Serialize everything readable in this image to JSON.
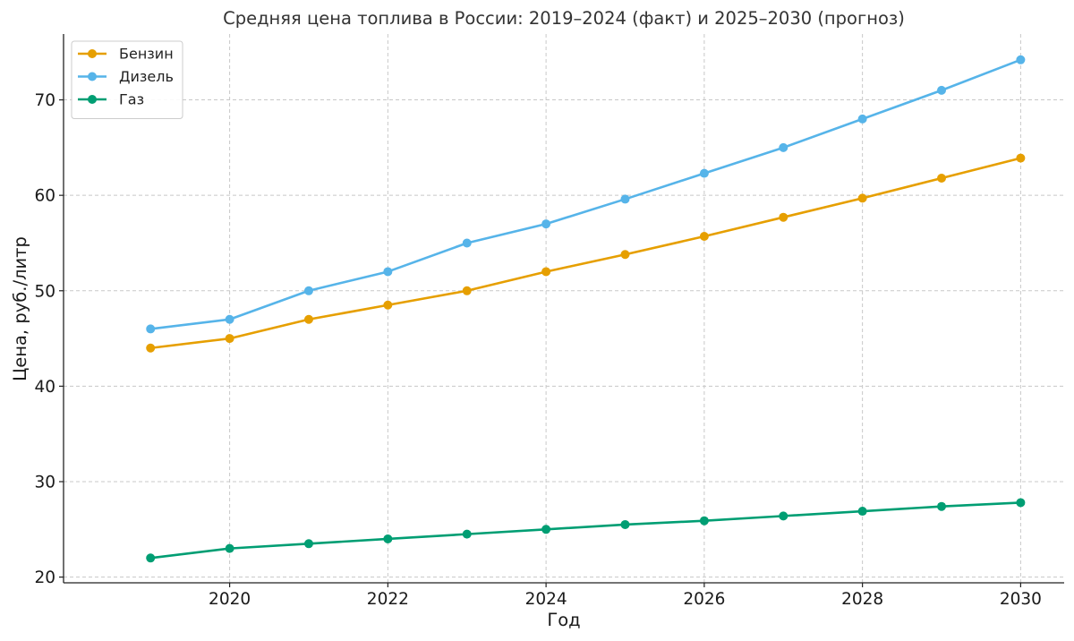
{
  "chart_data": {
    "type": "line",
    "title": "Средняя цена топлива в России: 2019–2024 (факт) и 2025–2030 (прогноз)",
    "xlabel": "Год",
    "ylabel": "Цена, руб./литр",
    "x": [
      2019,
      2020,
      2021,
      2022,
      2023,
      2024,
      2025,
      2026,
      2027,
      2028,
      2029,
      2030
    ],
    "x_ticks": [
      2020,
      2022,
      2024,
      2026,
      2028,
      2030
    ],
    "y_ticks": [
      20,
      30,
      40,
      50,
      60,
      70
    ],
    "xlim": [
      2017.9,
      2030.55
    ],
    "ylim": [
      19.4,
      76.9
    ],
    "grid": true,
    "legend_position": "top-left",
    "series": [
      {
        "name": "Бензин",
        "color": "#e69f00",
        "values": [
          44.0,
          45.0,
          47.0,
          48.5,
          50.0,
          52.0,
          53.8,
          55.7,
          57.7,
          59.7,
          61.8,
          63.9
        ]
      },
      {
        "name": "Дизель",
        "color": "#56b4e9",
        "values": [
          46.0,
          47.0,
          50.0,
          52.0,
          55.0,
          57.0,
          59.6,
          62.3,
          65.0,
          68.0,
          71.0,
          74.2
        ]
      },
      {
        "name": "Газ",
        "color": "#009e73",
        "values": [
          22.0,
          23.0,
          23.5,
          24.0,
          24.5,
          25.0,
          25.5,
          25.9,
          26.4,
          26.9,
          27.4,
          27.8
        ]
      }
    ]
  }
}
